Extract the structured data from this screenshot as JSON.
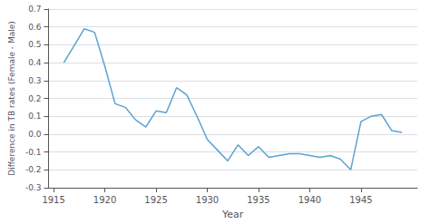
{
  "chart_data": {
    "type": "line",
    "x": [
      1916,
      1918,
      1919,
      1920,
      1921,
      1922,
      1923,
      1924,
      1925,
      1926,
      1927,
      1928,
      1929,
      1930,
      1931,
      1932,
      1933,
      1934,
      1935,
      1936,
      1937,
      1938,
      1939,
      1940,
      1941,
      1942,
      1943,
      1944,
      1945,
      1946,
      1947,
      1948,
      1949
    ],
    "values": [
      0.4,
      0.59,
      0.57,
      0.38,
      0.17,
      0.15,
      0.08,
      0.04,
      0.13,
      0.12,
      0.26,
      0.22,
      0.1,
      -0.03,
      -0.09,
      -0.15,
      -0.06,
      -0.12,
      -0.07,
      -0.13,
      -0.12,
      -0.11,
      -0.11,
      -0.12,
      -0.13,
      -0.12,
      -0.14,
      -0.2,
      0.07,
      0.1,
      0.11,
      0.02,
      0.01
    ],
    "color": "#5ba3d0",
    "xlabel": "Year",
    "ylabel": "Difference in TB rates (Female - Male)",
    "xlim": [
      1914.5,
      1950.5
    ],
    "ylim": [
      -0.3,
      0.7
    ],
    "xticks": [
      1915,
      1920,
      1925,
      1930,
      1935,
      1940,
      1945
    ],
    "yticks": [
      -0.3,
      -0.2,
      -0.1,
      {
        "value": 0.0,
        "label": "0.0"
      },
      0.1,
      0.2,
      0.3,
      0.4,
      0.5,
      0.6,
      0.7
    ],
    "grid": true
  }
}
